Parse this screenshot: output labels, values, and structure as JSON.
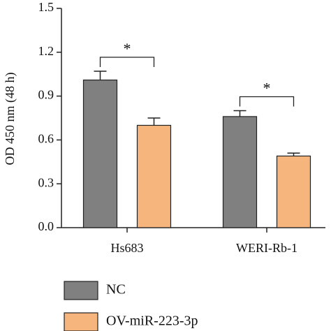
{
  "chart_data": {
    "type": "bar",
    "y_label": "OD 450 nm (48 h)",
    "categories": [
      "Hs683",
      "WERI-Rb-1"
    ],
    "series": [
      {
        "name": "NC",
        "color": "#808080",
        "values": [
          1.01,
          0.76
        ],
        "errors": [
          0.06,
          0.04
        ]
      },
      {
        "name": "OV-miR-223-3p",
        "color": "#f5b57c",
        "values": [
          0.7,
          0.49
        ],
        "errors": [
          0.05,
          0.02
        ]
      }
    ],
    "annotations": [
      "*",
      "*"
    ],
    "ylim": [
      0,
      1.5
    ],
    "yticks": [
      {
        "value": 0,
        "label": "0.0"
      },
      0.3,
      0.6,
      0.9,
      1.2,
      1.5
    ]
  }
}
